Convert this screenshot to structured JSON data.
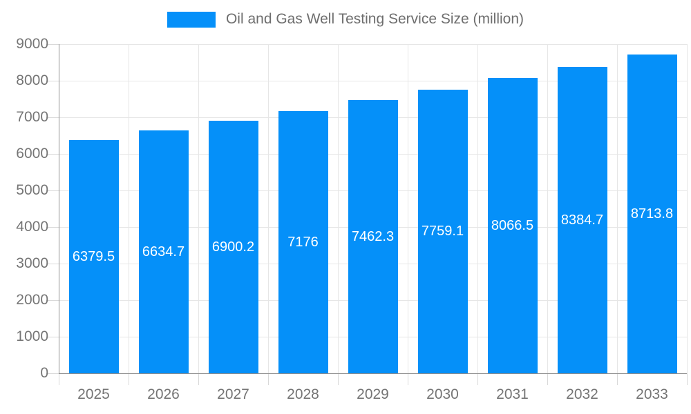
{
  "chart_data": {
    "type": "bar",
    "title": "Oil and Gas Well Testing Service Size (million)",
    "legend": {
      "label": "Oil and Gas Well Testing Service Size (million)",
      "position": "top-center"
    },
    "categories": [
      "2025",
      "2026",
      "2027",
      "2028",
      "2029",
      "2030",
      "2031",
      "2032",
      "2033"
    ],
    "series": [
      {
        "name": "Oil and Gas Well Testing Service Size (million)",
        "values": [
          6379.5,
          6634.7,
          6900.2,
          7176,
          7462.3,
          7759.1,
          8066.5,
          8384.7,
          8713.8
        ]
      }
    ],
    "value_labels": [
      "6379.5",
      "6634.7",
      "6900.2",
      "7176",
      "7462.3",
      "7759.1",
      "8066.5",
      "8384.7",
      "8713.8"
    ],
    "xlabel": "",
    "ylabel": "",
    "ylim": [
      0,
      9000
    ],
    "y_ticks": [
      0,
      1000,
      2000,
      3000,
      4000,
      5000,
      6000,
      7000,
      8000,
      9000
    ],
    "grid": true,
    "colors": {
      "bar": "#0590f9",
      "bar_value_text": "#ffffff",
      "grid_line": "#e6e6e6",
      "tick_line": "#d9d9d9",
      "axis_line": "#8f8f8f",
      "axis_label": "#757575",
      "legend_text": "#6e6e6e",
      "background": "#ffffff"
    }
  }
}
